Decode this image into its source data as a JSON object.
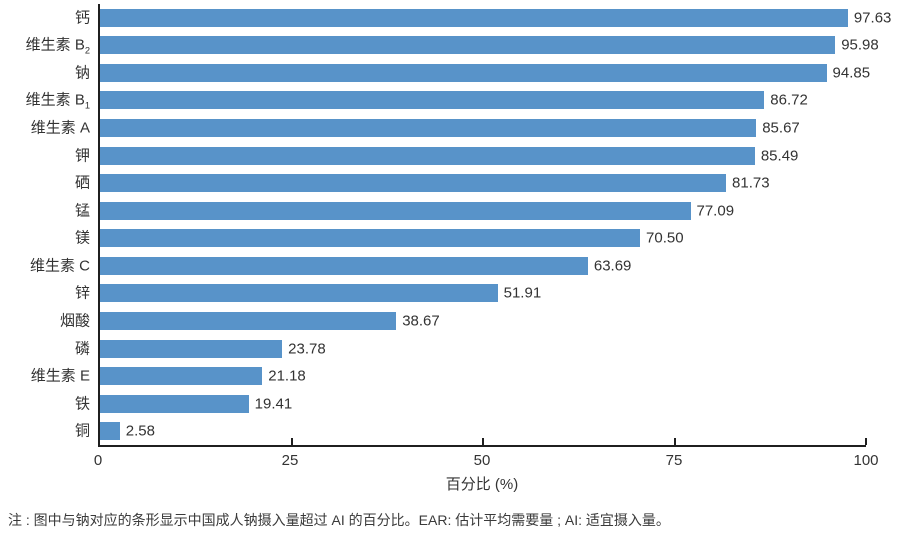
{
  "chart_data": {
    "type": "bar",
    "orientation": "horizontal",
    "title": "",
    "categories": [
      "钙",
      "维生素 B₂",
      "钠",
      "维生素 B₁",
      "维生素 A",
      "钾",
      "硒",
      "锰",
      "镁",
      "维生素 C",
      "锌",
      "烟酸",
      "磷",
      "维生素 E",
      "铁",
      "铜"
    ],
    "values": [
      97.63,
      95.98,
      94.85,
      86.72,
      85.67,
      85.49,
      81.73,
      77.09,
      70.5,
      63.69,
      51.91,
      38.67,
      23.78,
      21.18,
      19.41,
      2.58
    ],
    "xlabel": "百分比 (%)",
    "ylabel": "",
    "xlim": [
      0,
      100
    ],
    "xticks": [
      0,
      25,
      50,
      75,
      100
    ],
    "grid": false,
    "legend_position": "none",
    "bar_color": "#5893c9",
    "axis_color": "#1f1f1f",
    "value_labels_decimals": 2
  },
  "note": "注 : 图中与钠对应的条形显示中国成人钠摄入量超过 AI 的百分比。EAR: 估计平均需要量 ; AI: 适宜摄入量。"
}
